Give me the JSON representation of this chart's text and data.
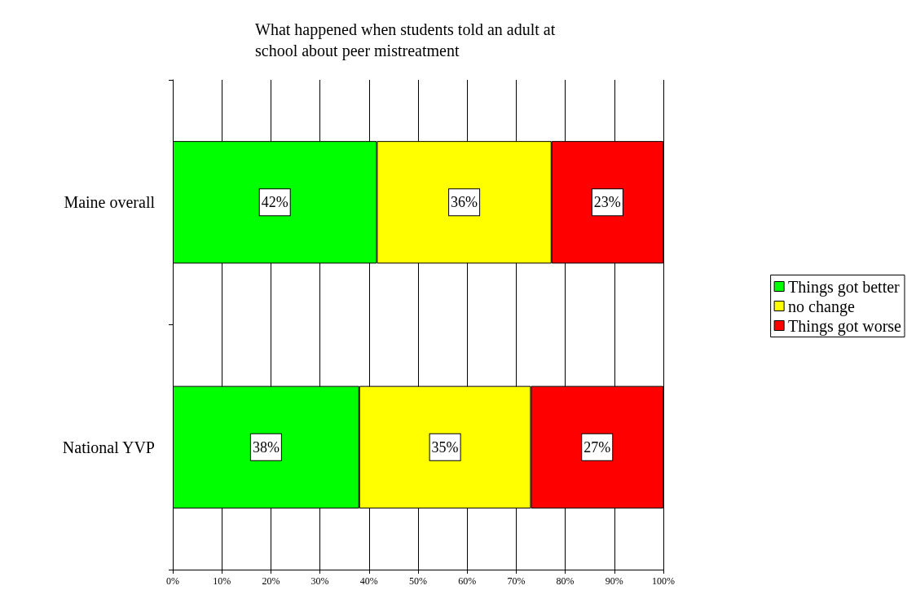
{
  "chart_data": {
    "type": "bar",
    "orientation": "horizontal",
    "stacked": true,
    "title": "What happened when students told an adult at school about peer mistreatment",
    "categories": [
      "Maine overall",
      "National YVP"
    ],
    "series": [
      {
        "name": "Things got better",
        "color": "#00ff00",
        "values": [
          41.6,
          38
        ],
        "value_labels": [
          "42%",
          "38%"
        ]
      },
      {
        "name": "no change",
        "color": "#ffff00",
        "values": [
          35.6,
          35
        ],
        "value_labels": [
          "36%",
          "35%"
        ]
      },
      {
        "name": "Things got worse",
        "color": "#ff0000",
        "values": [
          22.8,
          27
        ],
        "value_labels": [
          "23%",
          "27%"
        ]
      }
    ],
    "xlim": [
      0,
      100
    ],
    "xticks": [
      {
        "value": 0,
        "label": "0%"
      },
      {
        "value": 10,
        "label": "10%"
      },
      {
        "value": 20,
        "label": "20%"
      },
      {
        "value": 30,
        "label": "30%"
      },
      {
        "value": 40,
        "label": "40%"
      },
      {
        "value": 50,
        "label": "50%"
      },
      {
        "value": 60,
        "label": "60%"
      },
      {
        "value": 70,
        "label": "70%"
      },
      {
        "value": 80,
        "label": "80%"
      },
      {
        "value": 90,
        "label": "90%"
      },
      {
        "value": 100,
        "label": "100%"
      }
    ],
    "grid": "x",
    "legend": "right"
  }
}
